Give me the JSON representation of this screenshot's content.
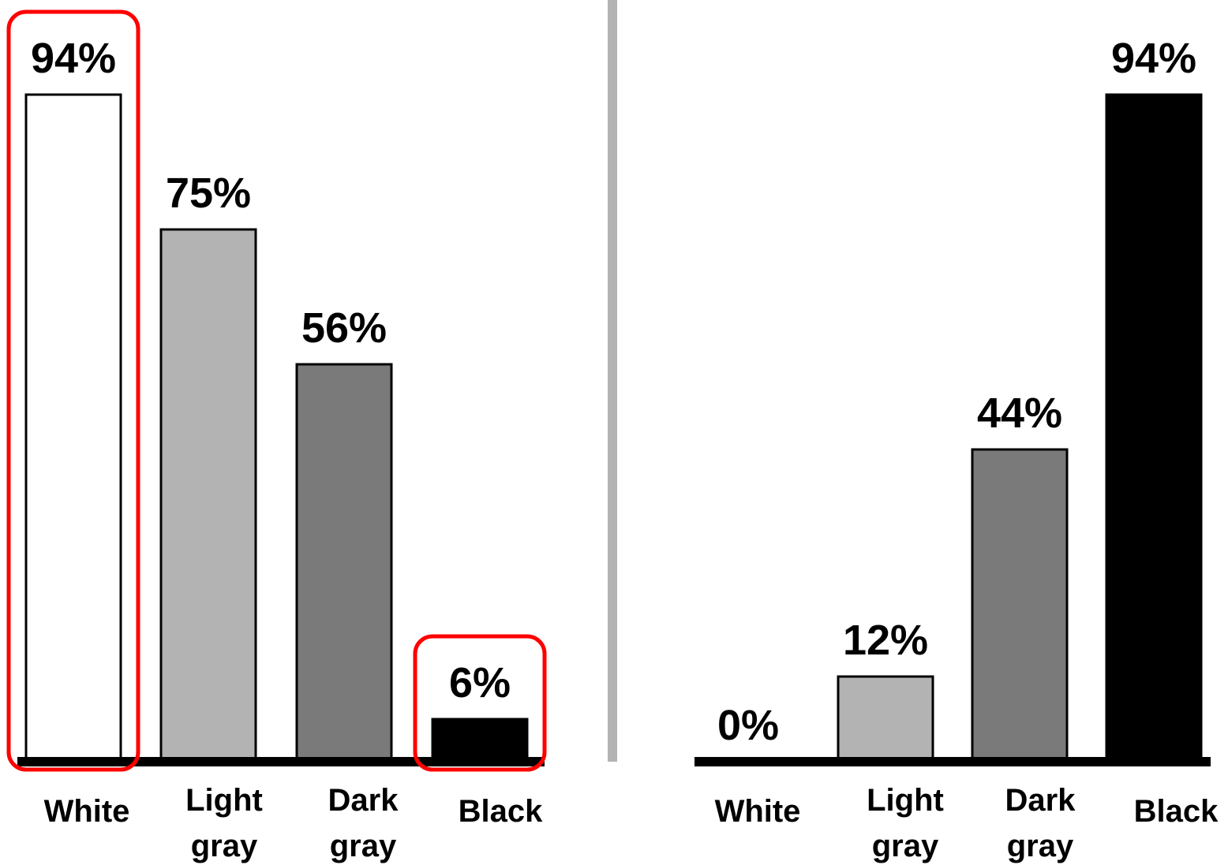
{
  "chart_data": [
    {
      "type": "bar",
      "categories": [
        [
          "White"
        ],
        [
          "Light",
          "gray"
        ],
        [
          "Dark",
          "gray"
        ],
        [
          "Black"
        ]
      ],
      "values": [
        94,
        75,
        56,
        6
      ],
      "value_labels": [
        "94%",
        "75%",
        "56%",
        "6%"
      ],
      "bar_colors": [
        "#ffffff",
        "#b3b3b3",
        "#7a7a7a",
        "#000000"
      ],
      "highlighted": [
        0,
        3
      ],
      "ylim": [
        0,
        100
      ]
    },
    {
      "type": "bar",
      "categories": [
        [
          "White"
        ],
        [
          "Light",
          "gray"
        ],
        [
          "Dark",
          "gray"
        ],
        [
          "Black"
        ]
      ],
      "values": [
        0,
        12,
        44,
        94
      ],
      "value_labels": [
        "0%",
        "12%",
        "44%",
        "94%"
      ],
      "bar_colors": [
        "#ffffff",
        "#b3b3b3",
        "#7a7a7a",
        "#000000"
      ],
      "highlighted": [],
      "ylim": [
        0,
        100
      ]
    }
  ],
  "colors": {
    "highlight": "#ff0000",
    "divider": "#b3b3b3",
    "baseline": "#000000"
  }
}
